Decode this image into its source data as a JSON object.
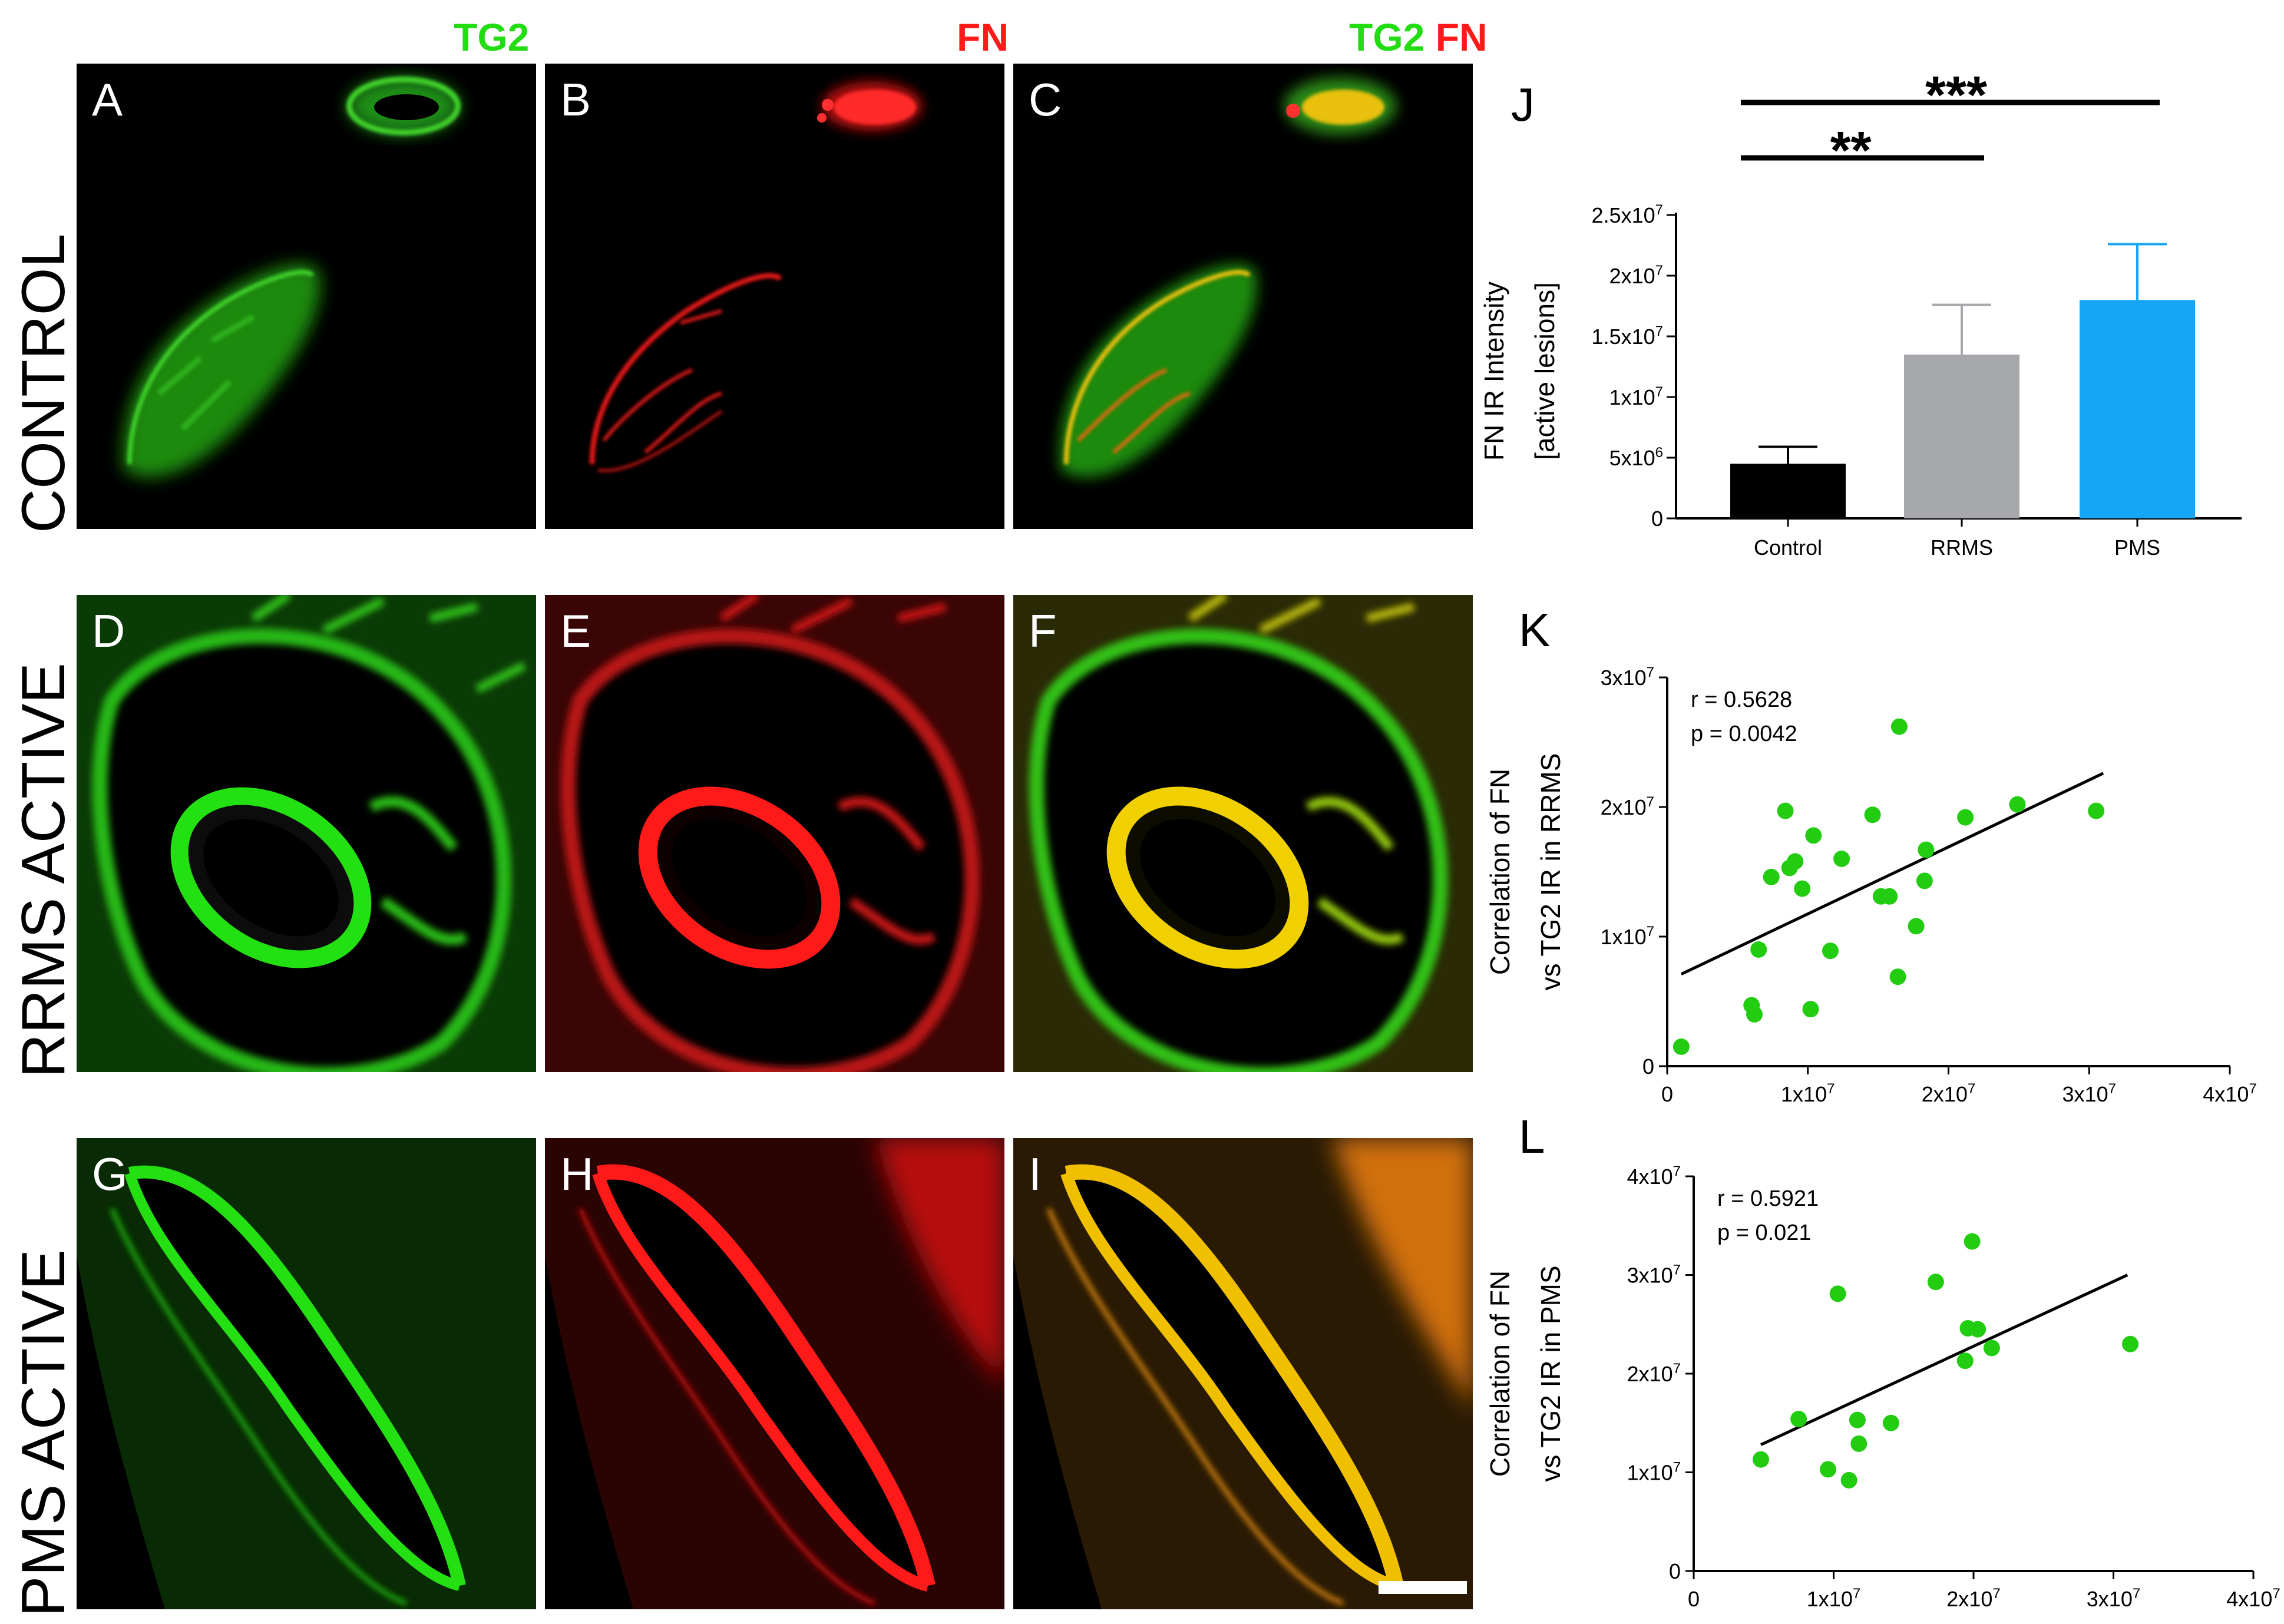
{
  "column_headers": {
    "tg2": "TG2",
    "fn": "FN",
    "merge_tg2": "TG2",
    "merge_fn": "FN"
  },
  "row_labels": {
    "control": "CONTROL",
    "rrms": "RRMS ACTIVE",
    "pms": "PMS ACTIVE"
  },
  "panels": {
    "a": "A",
    "b": "B",
    "c": "C",
    "d": "D",
    "e": "E",
    "f": "F",
    "g": "G",
    "h": "H",
    "i": "I"
  },
  "colors": {
    "tg2_green": "#22dd11",
    "fn_red": "#ff1a1a",
    "merge_yellow": "#f0d000",
    "bar_control": "#000000",
    "bar_rrms": "#a7a8ab",
    "bar_pms": "#17a6f5",
    "scatter_point": "#22cc11"
  },
  "chart_labels": {
    "j": "J",
    "k": "K",
    "l": "L"
  },
  "chart_data": [
    {
      "id": "J",
      "type": "bar",
      "categories": [
        "Control",
        "RRMS",
        "PMS"
      ],
      "values": [
        4500000,
        13500000,
        18000000
      ],
      "errors": [
        1400000,
        4100000,
        4600000
      ],
      "ylim": [
        0,
        25000000
      ],
      "yticks": [
        {
          "value": 0,
          "mant": "0",
          "exp": ""
        },
        {
          "value": 5000000,
          "mant": "5x10",
          "exp": "6"
        },
        {
          "value": 10000000,
          "mant": "1x10",
          "exp": "7"
        },
        {
          "value": 15000000,
          "mant": "1.5x10",
          "exp": "7"
        },
        {
          "value": 20000000,
          "mant": "2x10",
          "exp": "7"
        },
        {
          "value": 25000000,
          "mant": "2.5x10",
          "exp": "7"
        }
      ],
      "ylabel_line1": "FN IR Intensity",
      "ylabel_line2": "[active lesions]",
      "significance": [
        {
          "from": "Control",
          "to": "RRMS",
          "label": "**"
        },
        {
          "from": "Control",
          "to": "PMS",
          "label": "***"
        }
      ]
    },
    {
      "id": "K",
      "type": "scatter",
      "xlim": [
        0,
        40000000
      ],
      "ylim": [
        0,
        30000000
      ],
      "xticks": [
        {
          "value": 0,
          "mant": "0",
          "exp": ""
        },
        {
          "value": 10000000,
          "mant": "1x10",
          "exp": "7"
        },
        {
          "value": 20000000,
          "mant": "2x10",
          "exp": "7"
        },
        {
          "value": 30000000,
          "mant": "3x10",
          "exp": "7"
        },
        {
          "value": 40000000,
          "mant": "4x10",
          "exp": "7"
        }
      ],
      "yticks": [
        {
          "value": 0,
          "mant": "0",
          "exp": ""
        },
        {
          "value": 10000000,
          "mant": "1x10",
          "exp": "7"
        },
        {
          "value": 20000000,
          "mant": "2x10",
          "exp": "7"
        },
        {
          "value": 30000000,
          "mant": "3x10",
          "exp": "7"
        }
      ],
      "ylabel_line1": "Correlation of FN",
      "ylabel_line2": "vs TG2 IR in RRMS",
      "r_text": "r = 0.5628",
      "p_text": "p = 0.0042",
      "points": [
        [
          1000000,
          1500000
        ],
        [
          6000000,
          4700000
        ],
        [
          6200000,
          4000000
        ],
        [
          6500000,
          9000000
        ],
        [
          7400000,
          14600000
        ],
        [
          8400000,
          19700000
        ],
        [
          8700000,
          15300000
        ],
        [
          9100000,
          15800000
        ],
        [
          9600000,
          13700000
        ],
        [
          10200000,
          4400000
        ],
        [
          10400000,
          17800000
        ],
        [
          11600000,
          8900000
        ],
        [
          12400000,
          16000000
        ],
        [
          14600000,
          19400000
        ],
        [
          15200000,
          13100000
        ],
        [
          15800000,
          13100000
        ],
        [
          16400000,
          6900000
        ],
        [
          16500000,
          26200000
        ],
        [
          17700000,
          10800000
        ],
        [
          18300000,
          14300000
        ],
        [
          18400000,
          16700000
        ],
        [
          21200000,
          19200000
        ],
        [
          24900000,
          20200000
        ],
        [
          30500000,
          19700000
        ]
      ],
      "fit": [
        [
          1000000,
          7100000
        ],
        [
          31000000,
          22600000
        ]
      ]
    },
    {
      "id": "L",
      "type": "scatter",
      "xlim": [
        0,
        40000000
      ],
      "ylim": [
        0,
        40000000
      ],
      "xticks": [
        {
          "value": 0,
          "mant": "0",
          "exp": ""
        },
        {
          "value": 10000000,
          "mant": "1x10",
          "exp": "7"
        },
        {
          "value": 20000000,
          "mant": "2x10",
          "exp": "7"
        },
        {
          "value": 30000000,
          "mant": "3x10",
          "exp": "7"
        },
        {
          "value": 40000000,
          "mant": "4x10",
          "exp": "7"
        }
      ],
      "yticks": [
        {
          "value": 0,
          "mant": "0",
          "exp": ""
        },
        {
          "value": 10000000,
          "mant": "1x10",
          "exp": "7"
        },
        {
          "value": 20000000,
          "mant": "2x10",
          "exp": "7"
        },
        {
          "value": 30000000,
          "mant": "3x10",
          "exp": "7"
        },
        {
          "value": 40000000,
          "mant": "4x10",
          "exp": "7"
        }
      ],
      "ylabel_line1": "Correlation of FN",
      "ylabel_line2": "vs TG2 IR in PMS",
      "r_text": "r = 0.5921",
      "p_text": "p = 0.021",
      "points": [
        [
          4800000,
          11300000
        ],
        [
          7500000,
          15400000
        ],
        [
          9600000,
          10300000
        ],
        [
          10300000,
          28100000
        ],
        [
          11100000,
          9200000
        ],
        [
          11700000,
          15300000
        ],
        [
          11800000,
          12900000
        ],
        [
          14100000,
          15000000
        ],
        [
          17300000,
          29300000
        ],
        [
          19400000,
          21300000
        ],
        [
          19600000,
          24600000
        ],
        [
          19900000,
          33400000
        ],
        [
          20300000,
          24500000
        ],
        [
          21300000,
          22600000
        ],
        [
          31200000,
          23000000
        ]
      ],
      "fit": [
        [
          4800000,
          12800000
        ],
        [
          31000000,
          30000000
        ]
      ]
    }
  ]
}
